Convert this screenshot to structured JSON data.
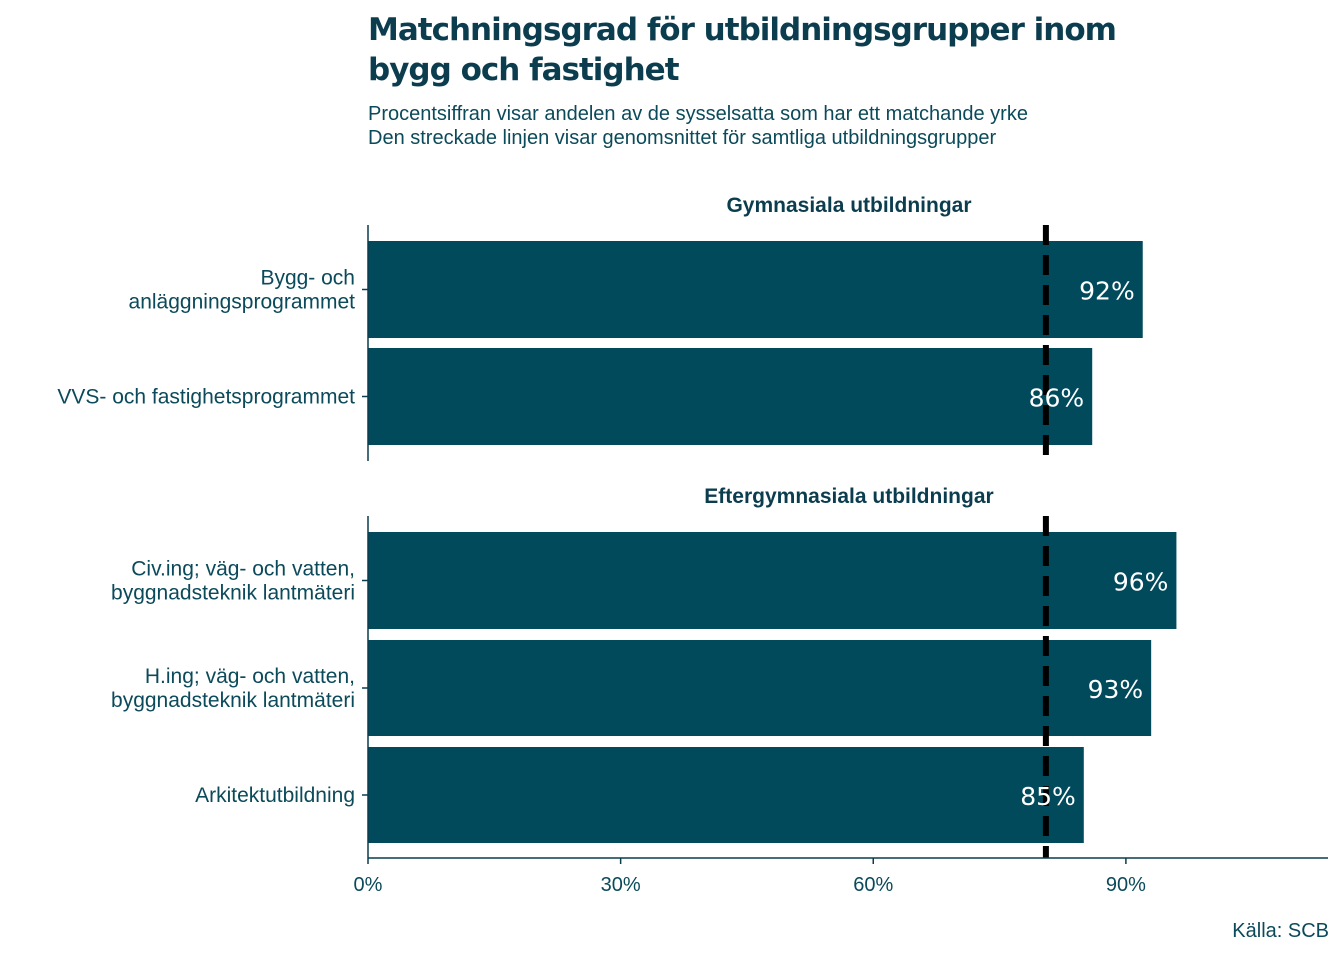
{
  "title_lines": [
    "Matchningsgrad för utbildningsgrupper inom",
    "bygg och fastighet"
  ],
  "subtitle_lines": [
    "Procentsiffran visar andelen av de sysselsatta som har ett matchande yrke",
    "Den streckade linjen visar genomsnittet för samtliga utbildningsgrupper"
  ],
  "source": "Källa: SCB",
  "colors": {
    "bar": "#014a5c",
    "text": "#0b4a5a",
    "title": "#0b3d4f",
    "reference_line": "#000000",
    "bar_label": "#ffffff"
  },
  "chart_data": {
    "type": "bar",
    "orientation": "horizontal",
    "xlim": [
      0,
      114
    ],
    "x_ticks": [
      0,
      30,
      60,
      90
    ],
    "x_tick_labels": [
      "0%",
      "30%",
      "60%",
      "90%"
    ],
    "reference_line": 80.5,
    "reference_line_style": "dashed",
    "grid": false,
    "panels": [
      {
        "title": "Gymnasiala utbildningar",
        "categories": [
          [
            "Bygg- och",
            "anläggningsprogrammet"
          ],
          [
            "VVS- och fastighetsprogrammet"
          ]
        ],
        "values": [
          92,
          86
        ],
        "labels": [
          "92%",
          "86%"
        ]
      },
      {
        "title": "Eftergymnasiala utbildningar",
        "categories": [
          [
            "Civ.ing; väg- och vatten,",
            "byggnadsteknik lantmäteri"
          ],
          [
            "H.ing; väg- och vatten,",
            "byggnadsteknik lantmäteri"
          ],
          [
            "Arkitektutbildning"
          ]
        ],
        "values": [
          96,
          93,
          85
        ],
        "labels": [
          "96%",
          "93%",
          "85%"
        ]
      }
    ]
  }
}
